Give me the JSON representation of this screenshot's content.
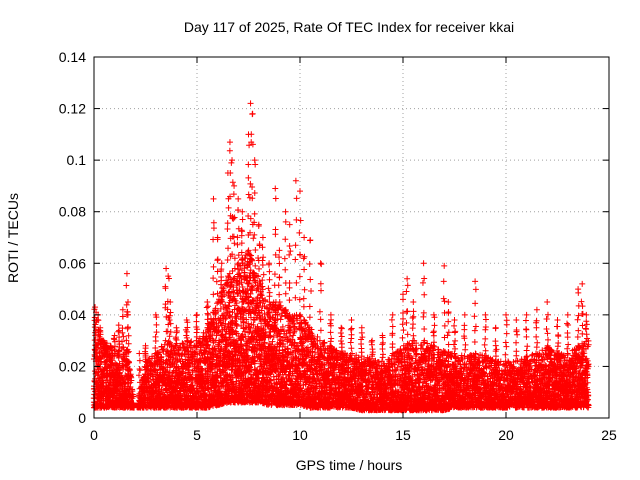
{
  "chart_data": {
    "type": "scatter",
    "title": "Day 117 of 2025, Rate Of TEC Index for receiver kkai",
    "xlabel": "GPS time / hours",
    "ylabel": "ROTI / TECUs",
    "xlim": [
      0,
      25
    ],
    "ylim": [
      0,
      0.14
    ],
    "xticks": [
      0,
      5,
      10,
      15,
      20,
      25
    ],
    "yticks": [
      0,
      0.02,
      0.04,
      0.06,
      0.08,
      0.1,
      0.12,
      0.14
    ],
    "xtick_labels": [
      "0",
      "5",
      "10",
      "15",
      "20",
      "25"
    ],
    "ytick_labels": [
      "0",
      "0.02",
      "0.04",
      "0.06",
      "0.08",
      "0.1",
      "0.12",
      "0.14"
    ],
    "grid": true,
    "legend": "none",
    "marker": "plus",
    "color": "#ff0000",
    "series": [
      {
        "x": [
          0.05,
          0.1,
          0.2,
          0.3,
          0.4,
          0.5,
          0.6,
          0.8,
          1.0,
          1.2,
          1.4,
          1.6,
          1.65,
          2.2,
          2.5,
          3.0,
          3.5,
          3.6,
          3.7,
          4.0,
          4.5,
          5.0,
          5.5,
          5.8,
          6.0,
          6.2,
          6.5,
          6.6,
          6.7,
          6.8,
          7.0,
          7.2,
          7.5,
          7.6,
          7.7,
          7.8,
          8.0,
          8.2,
          8.5,
          8.8,
          9.0,
          9.3,
          9.5,
          9.8,
          10.0,
          10.2,
          10.5,
          11.0,
          11.5,
          12.0,
          12.5,
          13.0,
          13.5,
          14.0,
          14.5,
          15.0,
          15.2,
          15.5,
          16.0,
          16.5,
          17.0,
          17.2,
          17.5,
          18.0,
          18.5,
          19.0,
          19.5,
          20.0,
          20.5,
          21.0,
          21.5,
          22.0,
          22.5,
          23.0,
          23.5,
          23.7,
          23.9
        ],
        "y": [
          0.043,
          0.041,
          0.04,
          0.035,
          0.03,
          0.025,
          0.022,
          0.028,
          0.032,
          0.036,
          0.042,
          0.056,
          0.045,
          0.025,
          0.028,
          0.04,
          0.058,
          0.055,
          0.045,
          0.035,
          0.038,
          0.04,
          0.045,
          0.085,
          0.07,
          0.06,
          0.095,
          0.107,
          0.1,
          0.09,
          0.085,
          0.08,
          0.11,
          0.122,
          0.118,
          0.1,
          0.075,
          0.07,
          0.06,
          0.089,
          0.065,
          0.08,
          0.075,
          0.092,
          0.088,
          0.07,
          0.069,
          0.06,
          0.04,
          0.035,
          0.038,
          0.035,
          0.03,
          0.032,
          0.04,
          0.048,
          0.054,
          0.045,
          0.06,
          0.04,
          0.059,
          0.045,
          0.038,
          0.04,
          0.053,
          0.04,
          0.035,
          0.04,
          0.038,
          0.04,
          0.042,
          0.045,
          0.038,
          0.04,
          0.05,
          0.052,
          0.04
        ],
        "envelope_x": [
          0.0,
          0.5,
          1.0,
          1.5,
          1.7,
          2.0,
          2.5,
          3.0,
          3.5,
          4.0,
          4.5,
          5.0,
          5.5,
          6.0,
          6.5,
          7.0,
          7.5,
          8.0,
          8.5,
          9.0,
          9.5,
          10.0,
          10.5,
          11.0,
          11.5,
          12.0,
          12.5,
          13.0,
          13.5,
          14.0,
          14.5,
          15.0,
          15.5,
          16.0,
          16.5,
          17.0,
          17.5,
          18.0,
          18.5,
          19.0,
          19.5,
          20.0,
          20.5,
          21.0,
          21.5,
          22.0,
          22.5,
          23.0,
          23.5,
          24.0
        ],
        "envelope_low": [
          0.004,
          0.004,
          0.004,
          0.004,
          0.004,
          0.004,
          0.004,
          0.004,
          0.004,
          0.004,
          0.004,
          0.004,
          0.004,
          0.005,
          0.006,
          0.006,
          0.006,
          0.006,
          0.005,
          0.005,
          0.005,
          0.005,
          0.004,
          0.004,
          0.004,
          0.004,
          0.004,
          0.003,
          0.003,
          0.003,
          0.003,
          0.003,
          0.003,
          0.003,
          0.003,
          0.003,
          0.004,
          0.004,
          0.004,
          0.004,
          0.004,
          0.004,
          0.004,
          0.004,
          0.004,
          0.004,
          0.004,
          0.004,
          0.004,
          0.004
        ],
        "envelope_high": [
          0.028,
          0.03,
          0.025,
          0.028,
          0.025,
          0.0,
          0.022,
          0.025,
          0.03,
          0.028,
          0.03,
          0.03,
          0.035,
          0.045,
          0.055,
          0.06,
          0.065,
          0.055,
          0.045,
          0.045,
          0.04,
          0.04,
          0.035,
          0.03,
          0.028,
          0.026,
          0.025,
          0.024,
          0.023,
          0.022,
          0.025,
          0.028,
          0.03,
          0.03,
          0.028,
          0.026,
          0.025,
          0.024,
          0.025,
          0.024,
          0.022,
          0.022,
          0.022,
          0.024,
          0.025,
          0.028,
          0.026,
          0.025,
          0.028,
          0.03
        ]
      }
    ]
  }
}
